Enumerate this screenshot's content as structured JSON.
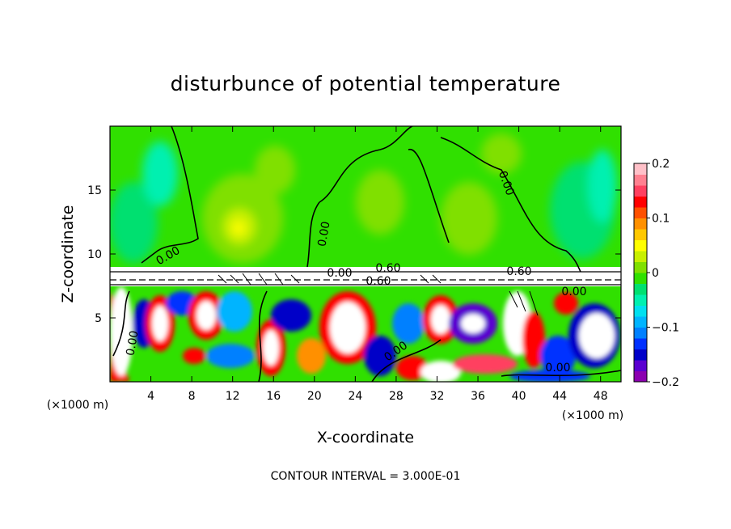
{
  "chart_data": {
    "type": "heatmap",
    "title": "disturbunce of potential temperature",
    "xlabel": "X-coordinate",
    "ylabel": "Z-coordinate",
    "x_unit": "(×1000 m)",
    "y_unit": "(×1000 m)",
    "xlim": [
      0,
      50
    ],
    "ylim": [
      0,
      20
    ],
    "x_ticks": [
      4,
      8,
      12,
      16,
      20,
      24,
      28,
      32,
      36,
      40,
      44,
      48
    ],
    "x_tick_labels": [
      "4",
      "8",
      "12",
      "16",
      "20",
      "24",
      "28",
      "32",
      "36",
      "40",
      "44",
      "48"
    ],
    "y_ticks": [
      5,
      10,
      15
    ],
    "y_tick_labels": [
      "5",
      "10",
      "15"
    ],
    "colorbar": {
      "range": [
        -0.2,
        0.2
      ],
      "ticks": [
        0.2,
        0.1,
        0,
        -0.1,
        -0.2
      ],
      "tick_labels": [
        "0.2",
        "0.1",
        "0",
        "−0.1",
        "−0.2"
      ],
      "colors": [
        "#8b00b0",
        "#5a00d0",
        "#0000c8",
        "#0030ff",
        "#0080ff",
        "#00b4ff",
        "#00e0f0",
        "#00f0b0",
        "#00e070",
        "#30e000",
        "#80e000",
        "#c8f000",
        "#ffff00",
        "#ffc800",
        "#ff9000",
        "#ff5000",
        "#ff0000",
        "#ff4060",
        "#ff8090",
        "#ffc0c8"
      ]
    },
    "contour_labels": [
      "0.00",
      "0.00",
      "0.00",
      "0.00",
      "0.00",
      "0.60",
      "0.60",
      "0.60",
      "0.00",
      "0.00",
      "0.00"
    ],
    "footer": "CONTOUR INTERVAL = 3.000E-01",
    "grid": false
  }
}
